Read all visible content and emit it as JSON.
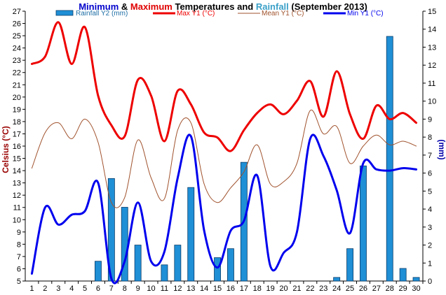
{
  "title": {
    "parts": [
      {
        "text": "Minimum",
        "color": "#0000cc"
      },
      {
        "text": " & ",
        "color": "#000000"
      },
      {
        "text": "Maximum",
        "color": "#e00000"
      },
      {
        "text": " Temperatures and ",
        "color": "#000000"
      },
      {
        "text": "Rainfall",
        "color": "#3aa0c8"
      },
      {
        "text": " (September 2013)",
        "color": "#000000"
      }
    ]
  },
  "chart_data": {
    "type": "line",
    "title": "Minimum & Maximum Temperatures and Rainfall (September 2013)",
    "ylabel": "Celsius (°C)",
    "y2label": "(mm)",
    "x": [
      1,
      2,
      3,
      4,
      5,
      6,
      7,
      8,
      9,
      10,
      11,
      12,
      13,
      14,
      15,
      16,
      17,
      18,
      19,
      20,
      21,
      22,
      23,
      24,
      25,
      26,
      27,
      28,
      29,
      30
    ],
    "ylim": [
      5,
      27
    ],
    "y2lim": [
      0,
      15
    ],
    "yticks": [
      5,
      6,
      7,
      8,
      9,
      10,
      11,
      12,
      13,
      14,
      15,
      16,
      17,
      18,
      19,
      20,
      21,
      22,
      23,
      24,
      25,
      26,
      27
    ],
    "y2ticks": [
      0,
      1,
      2,
      3,
      4,
      5,
      6,
      7,
      8,
      9,
      10,
      11,
      12,
      13,
      14,
      15
    ],
    "grid": false,
    "legend_position": "top",
    "series": [
      {
        "name": "Rainfall Y2 (mm)",
        "kind": "bar",
        "axis": "y2",
        "color": "#1f8fd6",
        "values": [
          0,
          0,
          0,
          0,
          0,
          1.1,
          5.7,
          4.1,
          2.0,
          0,
          0.9,
          2.0,
          5.2,
          0,
          1.3,
          1.8,
          6.6,
          0,
          0,
          0,
          0,
          0,
          0,
          0.2,
          1.8,
          6.4,
          0,
          13.6,
          0.7,
          0.2
        ]
      },
      {
        "name": "Max Y1 (°C)",
        "kind": "line",
        "axis": "y1",
        "color": "#ee0000",
        "width": 3,
        "values": [
          22.7,
          23.3,
          26.1,
          22.7,
          25.7,
          20.1,
          17.7,
          16.8,
          21.4,
          20.1,
          16.4,
          20.5,
          19.4,
          17.1,
          16.7,
          15.6,
          17.3,
          18.7,
          19.4,
          18.6,
          19.7,
          21.3,
          18.4,
          22.1,
          18.6,
          16.6,
          19.3,
          18.2,
          18.7,
          17.9
        ]
      },
      {
        "name": "Mean Y1 (°C)",
        "kind": "line",
        "axis": "y1",
        "color": "#a0522d",
        "width": 1,
        "values": [
          14.2,
          17.1,
          17.9,
          16.6,
          18.2,
          16.3,
          11.4,
          11.8,
          16.5,
          13.4,
          11.7,
          17.3,
          17.9,
          12.9,
          11.4,
          12.6,
          13.9,
          16.1,
          12.9,
          13.1,
          14.6,
          18.9,
          17.0,
          17.6,
          14.6,
          16.0,
          16.9,
          16.1,
          16.4,
          16.0
        ]
      },
      {
        "name": "Min Y1 (°C)",
        "kind": "line",
        "axis": "y1",
        "color": "#0000ee",
        "width": 3,
        "values": [
          5.6,
          11.0,
          9.6,
          10.4,
          10.7,
          13.0,
          5.2,
          6.6,
          11.4,
          6.6,
          7.4,
          13.4,
          16.8,
          9.1,
          6.1,
          9.1,
          9.9,
          13.6,
          6.2,
          7.3,
          9.0,
          16.6,
          15.2,
          12.4,
          8.9,
          14.6,
          14.1,
          14.0,
          14.2,
          14.1
        ]
      }
    ]
  }
}
